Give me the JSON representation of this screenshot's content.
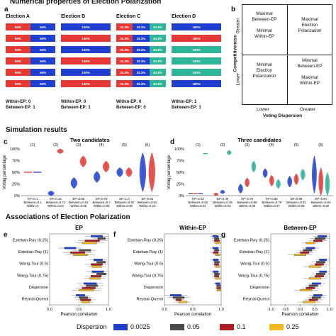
{
  "sections": {
    "numerical": "Numerical properties of Election Polarization",
    "simulation": "Simulation results",
    "associations": "Associations of Election Polarization"
  },
  "panel_letters": {
    "a": "a",
    "b": "b",
    "c": "c",
    "d": "d",
    "e": "e",
    "f": "f",
    "g": "g"
  },
  "elections": [
    {
      "title": "Election A",
      "within": "Within-EP: 0",
      "between": "Between-EP: 1",
      "rows": [
        [
          [
            "#e53935",
            50,
            "50%"
          ],
          [
            "#1f3fcf",
            50,
            "50%"
          ]
        ],
        [
          [
            "#e53935",
            50,
            "50%"
          ],
          [
            "#1f3fcf",
            50,
            "50%"
          ]
        ],
        [
          [
            "#e53935",
            50,
            "50%"
          ],
          [
            "#1f3fcf",
            50,
            "50%"
          ]
        ],
        [
          [
            "#e53935",
            50,
            "50%"
          ],
          [
            "#1f3fcf",
            50,
            "50%"
          ]
        ],
        [
          [
            "#e53935",
            50,
            "50%"
          ],
          [
            "#1f3fcf",
            50,
            "50%"
          ]
        ],
        [
          [
            "#e53935",
            50,
            "50%"
          ],
          [
            "#1f3fcf",
            50,
            "50%"
          ]
        ]
      ]
    },
    {
      "title": "Election B",
      "within": "Within-EP: 0",
      "between": "Between-EP: 1",
      "rows": [
        [
          [
            "#1f3fcf",
            100,
            "100%"
          ]
        ],
        [
          [
            "#e53935",
            100,
            "100%"
          ]
        ],
        [
          [
            "#1f3fcf",
            100,
            "100%"
          ]
        ],
        [
          [
            "#e53935",
            100,
            "100%"
          ]
        ],
        [
          [
            "#1f3fcf",
            100,
            "100%"
          ]
        ],
        [
          [
            "#e53935",
            100,
            "100%"
          ]
        ]
      ]
    },
    {
      "title": "Election C",
      "within": "Within-EP: 0",
      "between": "Between-EP: 0",
      "rows": [
        [
          [
            "#e53935",
            33.3,
            "33.3%"
          ],
          [
            "#1f3fcf",
            33.3,
            "33.3%"
          ],
          [
            "#2fb59a",
            33.3,
            "33.3%"
          ]
        ],
        [
          [
            "#e53935",
            33.3,
            "33.3%"
          ],
          [
            "#1f3fcf",
            33.3,
            "33.3%"
          ],
          [
            "#2fb59a",
            33.3,
            "33.3%"
          ]
        ],
        [
          [
            "#e53935",
            33.3,
            "33.3%"
          ],
          [
            "#1f3fcf",
            33.3,
            "33.3%"
          ],
          [
            "#2fb59a",
            33.3,
            "33.3%"
          ]
        ],
        [
          [
            "#e53935",
            33.3,
            "33.3%"
          ],
          [
            "#1f3fcf",
            33.3,
            "33.3%"
          ],
          [
            "#2fb59a",
            33.3,
            "33.3%"
          ]
        ],
        [
          [
            "#e53935",
            33.3,
            "33.3%"
          ],
          [
            "#1f3fcf",
            33.3,
            "33.3%"
          ],
          [
            "#2fb59a",
            33.3,
            "33.3%"
          ]
        ],
        [
          [
            "#e53935",
            33.3,
            "33.3%"
          ],
          [
            "#1f3fcf",
            33.3,
            "33.3%"
          ],
          [
            "#2fb59a",
            33.3,
            "33.3%"
          ]
        ]
      ]
    },
    {
      "title": "Election D",
      "within": "Within-EP: 1",
      "between": "Between-EP: 1",
      "rows": [
        [
          [
            "#1f3fcf",
            100,
            "100%"
          ]
        ],
        [
          [
            "#e53935",
            100,
            "100%"
          ]
        ],
        [
          [
            "#2fb59a",
            100,
            "100%"
          ]
        ],
        [
          [
            "#2fb59a",
            100,
            "100%"
          ]
        ],
        [
          [
            "#2fb59a",
            100,
            "100%"
          ]
        ],
        [
          [
            "#1f3fcf",
            100,
            "100%"
          ]
        ]
      ]
    }
  ],
  "quadrant": {
    "tl": [
      "Maximal",
      "Between-EP",
      "",
      "Minimal",
      "Within-EP"
    ],
    "tr": [
      "Maximal",
      "Election",
      "Polarization"
    ],
    "bl": [
      "Minimal",
      "Election",
      "Polarization"
    ],
    "br": [
      "Minimal",
      "Between-EP",
      "",
      "Maximal",
      "Within-EP"
    ],
    "ylabel": "Competitiveness",
    "greater": "Greater",
    "lower": "Lower",
    "xlabel": "Voting Dispersion",
    "xlower": "Lower",
    "xgreater": "Greater"
  },
  "colors": {
    "red": "#e53935",
    "blue": "#1f3fcf",
    "teal": "#2fb59a",
    "yellow": "#f2b822",
    "darkgray": "#4a4a4a"
  },
  "chart_data": [
    {
      "type": "violin",
      "title": "Two candidates",
      "ylabel": "Voting percentage",
      "yticks": [
        "0%",
        "25%",
        "50%",
        "75%",
        "100%"
      ],
      "ylim": [
        0,
        100
      ],
      "groups": [
        {
          "label": "(1)",
          "ep": "EP=0.1",
          "between": "Between=0.1",
          "within": "Within=0",
          "series": [
            {
              "color": "#e53935",
              "median": 50,
              "spread": 0
            },
            {
              "color": "#1f3fcf",
              "median": 50,
              "spread": 0
            }
          ]
        },
        {
          "label": "(2)",
          "ep": "EP=0.15",
          "between": "Between=0.71",
          "within": "Within=0.04",
          "series": [
            {
              "color": "#1f3fcf",
              "median": 5,
              "spread": 5
            },
            {
              "color": "#e53935",
              "median": 95,
              "spread": 5
            }
          ]
        },
        {
          "label": "(3)",
          "ep": "EP=0.56",
          "between": "Between=0.51",
          "within": "Within=0.06",
          "series": [
            {
              "color": "#1f3fcf",
              "median": 27,
              "spread": 12
            },
            {
              "color": "#e53935",
              "median": 73,
              "spread": 12
            }
          ]
        },
        {
          "label": "(4)",
          "ep": "EP=0.78",
          "between": "Between=0.7",
          "within": "Within=0.08",
          "series": [
            {
              "color": "#1f3fcf",
              "median": 40,
              "spread": 12
            },
            {
              "color": "#e53935",
              "median": 62,
              "spread": 12
            }
          ]
        },
        {
          "label": "(5)",
          "ep": "EP=1.0",
          "between": "Between=0.92",
          "within": "Within=0.08",
          "series": [
            {
              "color": "#1f3fcf",
              "median": 50,
              "spread": 10
            },
            {
              "color": "#e53935",
              "median": 50,
              "spread": 10
            }
          ]
        },
        {
          "label": "(6)",
          "ep": "EP=0.62",
          "between": "Between=0.62",
          "within": "Within=0.22",
          "series": [
            {
              "color": "#1f3fcf",
              "median": 50,
              "spread": 42
            },
            {
              "color": "#e53935",
              "median": 50,
              "spread": 42
            }
          ]
        }
      ]
    },
    {
      "type": "violin",
      "title": "Three candidates",
      "ylabel": "Voting percentage",
      "yticks": [
        "0%",
        "25%",
        "50%",
        "75%",
        "100%"
      ],
      "ylim": [
        0,
        100
      ],
      "groups": [
        {
          "label": "(1)",
          "ep": "EP=0.43",
          "between": "Between=0.62",
          "within": "Within=0.01",
          "series": [
            {
              "color": "#4a4a4a",
              "median": 5,
              "spread": 0
            },
            {
              "color": "#e53935",
              "median": 5,
              "spread": 0
            },
            {
              "color": "#1f3fcf",
              "median": 5,
              "spread": 0
            },
            {
              "color": "#2fb59a",
              "median": 90,
              "spread": 2
            }
          ]
        },
        {
          "label": "(2)",
          "ep": "EP=0.46",
          "between": "Between=0.46",
          "within": "Within=0.03",
          "series": [
            {
              "color": "#e53935",
              "median": 3,
              "spread": 3
            },
            {
              "color": "#1f3fcf",
              "median": 8,
              "spread": 4
            },
            {
              "color": "#2fb59a",
              "median": 92,
              "spread": 5
            }
          ]
        },
        {
          "label": "(3)",
          "ep": "EP=0.76",
          "between": "Between=0.69",
          "within": "Within=0.05",
          "series": [
            {
              "color": "#1f3fcf",
              "median": 15,
              "spread": 10
            },
            {
              "color": "#e53935",
              "median": 28,
              "spread": 10
            },
            {
              "color": "#2fb59a",
              "median": 62,
              "spread": 12
            }
          ]
        },
        {
          "label": "(4)",
          "ep": "EP=0.86",
          "between": "Between=0.76",
          "within": "Within=0.07",
          "series": [
            {
              "color": "#1f3fcf",
              "median": 48,
              "spread": 10
            },
            {
              "color": "#e53935",
              "median": 32,
              "spread": 12
            },
            {
              "color": "#2fb59a",
              "median": 25,
              "spread": 10
            }
          ]
        },
        {
          "label": "(5)",
          "ep": "EP=0.98",
          "between": "Between=0.81",
          "within": "Within=0.09",
          "series": [
            {
              "color": "#1f3fcf",
              "median": 30,
              "spread": 12
            },
            {
              "color": "#e53935",
              "median": 35,
              "spread": 12
            },
            {
              "color": "#2fb59a",
              "median": 45,
              "spread": 12
            }
          ]
        },
        {
          "label": "(6)",
          "ep": "EP=0.94",
          "between": "Between=0.62",
          "within": "Within=0.30",
          "series": [
            {
              "color": "#1f3fcf",
              "median": 45,
              "spread": 40
            },
            {
              "color": "#e53935",
              "median": 30,
              "spread": 30
            },
            {
              "color": "#2fb59a",
              "median": 25,
              "spread": 25
            }
          ]
        }
      ]
    },
    {
      "type": "boxplot",
      "title": "EP",
      "xlabel": "Pearson correlation",
      "xticks": [
        "0.0",
        "0.5",
        "1.0"
      ],
      "xlim": [
        0,
        1
      ],
      "rows": [
        "Esteban-Ray (0.25)",
        "Esteban-Ray (1)",
        "Wang-Tsui (0.5)",
        "Wang-Tsui (0.75)",
        "Dispersion",
        "Reynal-Querol"
      ],
      "boxes": [
        [
          [
            0.7,
            0.9
          ],
          [
            0.82,
            0.95
          ],
          [
            0.6,
            0.85
          ],
          [
            0.55,
            0.8
          ]
        ],
        [
          [
            0.25,
            0.45
          ],
          [
            0.5,
            0.7
          ],
          [
            0.35,
            0.6
          ],
          [
            0.4,
            0.65
          ]
        ],
        [
          [
            0.75,
            0.9
          ],
          [
            0.8,
            0.95
          ],
          [
            0.7,
            0.9
          ],
          [
            0.72,
            0.88
          ]
        ],
        [
          [
            0.72,
            0.92
          ],
          [
            0.8,
            0.96
          ],
          [
            0.7,
            0.88
          ],
          [
            0.68,
            0.86
          ]
        ],
        [
          [
            0.58,
            0.8
          ],
          [
            0.62,
            0.82
          ],
          [
            0.55,
            0.78
          ],
          [
            0.5,
            0.75
          ]
        ],
        [
          [
            0.45,
            0.6
          ],
          [
            0.5,
            0.65
          ],
          [
            0.52,
            0.7
          ],
          [
            0.55,
            0.68
          ]
        ]
      ]
    },
    {
      "type": "boxplot",
      "title": "Within-EP",
      "xlabel": "Pearson correlation",
      "xticks": [
        "0.0",
        "0.5",
        "1.0"
      ],
      "xlim": [
        0,
        1
      ],
      "rows": [
        "Esteban-Ray (0.25)",
        "Esteban-Ray (1)",
        "Wang-Tsui (0.5)",
        "Wang-Tsui (0.75)",
        "Dispersion",
        "Reynal-Querol"
      ],
      "boxes": [
        [
          [
            0.85,
            0.95
          ],
          [
            0.88,
            0.96
          ],
          [
            0.88,
            0.97
          ],
          [
            0.9,
            0.98
          ]
        ],
        [
          [
            0.85,
            0.95
          ],
          [
            0.88,
            0.96
          ],
          [
            0.86,
            0.95
          ],
          [
            0.9,
            0.98
          ]
        ],
        [
          [
            0.86,
            0.95
          ],
          [
            0.88,
            0.97
          ],
          [
            0.88,
            0.96
          ],
          [
            0.9,
            0.98
          ]
        ],
        [
          [
            0.86,
            0.95
          ],
          [
            0.88,
            0.97
          ],
          [
            0.88,
            0.96
          ],
          [
            0.9,
            0.98
          ]
        ],
        [
          [
            0.9,
            0.98
          ],
          [
            0.92,
            0.99
          ],
          [
            0.92,
            0.99
          ],
          [
            0.93,
            0.99
          ]
        ],
        [
          [
            0.1,
            0.3
          ],
          [
            0.15,
            0.35
          ],
          [
            0.2,
            0.3
          ],
          [
            0.25,
            0.4
          ]
        ]
      ]
    },
    {
      "type": "boxplot",
      "title": "Between-EP",
      "xlabel": "Pearson correlation",
      "xticks": [
        "-1.0",
        "-0.5",
        "0.0",
        "0.5",
        "1.0"
      ],
      "xlim": [
        -1,
        1
      ],
      "rows": [
        "Esteban-Ray (0.25)",
        "Esteban-Ray (1)",
        "Wang-Tsui (0.5)",
        "Wang-Tsui (0.75)",
        "Dispersion",
        "Reynal-Querol"
      ],
      "boxes": [
        [
          [
            0.6,
            0.9
          ],
          [
            0.5,
            0.85
          ],
          [
            0.45,
            0.75
          ],
          [
            0.2,
            0.5
          ]
        ],
        [
          [
            0.2,
            0.5
          ],
          [
            0.1,
            0.4
          ],
          [
            0.0,
            0.3
          ],
          [
            -0.2,
            0.2
          ]
        ],
        [
          [
            0.65,
            0.9
          ],
          [
            0.55,
            0.85
          ],
          [
            0.5,
            0.8
          ],
          [
            0.3,
            0.7
          ]
        ],
        [
          [
            0.65,
            0.9
          ],
          [
            0.55,
            0.85
          ],
          [
            0.5,
            0.8
          ],
          [
            0.3,
            0.7
          ]
        ],
        [
          [
            0.4,
            0.7
          ],
          [
            0.3,
            0.6
          ],
          [
            0.2,
            0.5
          ],
          [
            0.0,
            0.4
          ]
        ],
        [
          [
            0.45,
            0.75
          ],
          [
            0.4,
            0.7
          ],
          [
            0.3,
            0.6
          ],
          [
            0.1,
            0.5
          ]
        ]
      ]
    }
  ],
  "legend": {
    "title": "Dispersion",
    "items": [
      {
        "color": "#1f3fcf",
        "label": "0.0025"
      },
      {
        "color": "#4a4a4a",
        "label": "0.05"
      },
      {
        "color": "#b01c24",
        "label": "0.1"
      },
      {
        "color": "#f2b822",
        "label": "0.25"
      }
    ]
  }
}
